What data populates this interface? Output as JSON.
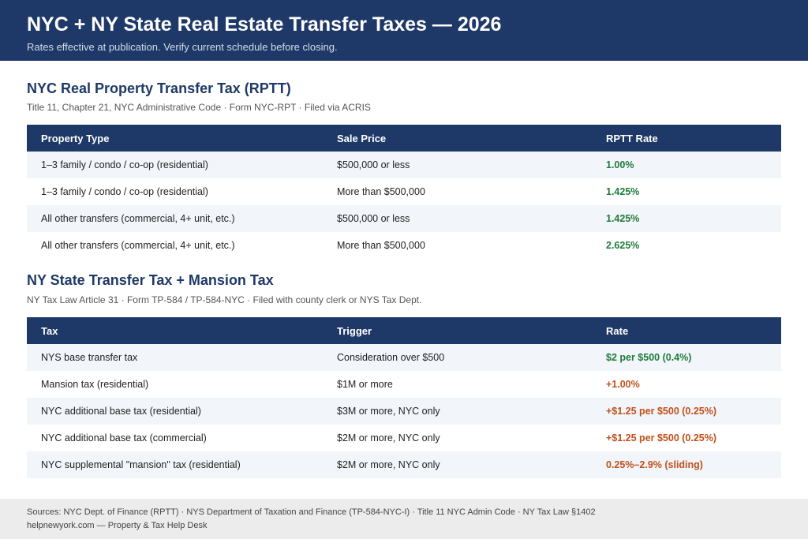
{
  "header": {
    "title": "NYC + NY State Real Estate Transfer Taxes — 2026",
    "subtitle": "Rates effective at publication. Verify current schedule before closing."
  },
  "sections": [
    {
      "title": "NYC Real Property Transfer Tax (RPTT)",
      "subtitle": "Title 11, Chapter 21, NYC Administrative Code · Form NYC-RPT · Filed via ACRIS",
      "table": {
        "columns": [
          "Property Type",
          "Sale Price",
          "RPTT Rate"
        ],
        "rows": [
          [
            "1–3 family / condo / co-op (residential)",
            "$500,000 or less",
            "1.00%"
          ],
          [
            "1–3 family / condo / co-op (residential)",
            "More than $500,000",
            "1.425%"
          ],
          [
            "All other transfers (commercial, 4+ unit, etc.)",
            "$500,000 or less",
            "1.425%"
          ],
          [
            "All other transfers (commercial, 4+ unit, etc.)",
            "More than $500,000",
            "2.625%"
          ]
        ],
        "rate_colors": [
          "#1f7a3c",
          "#1f7a3c",
          "#1f7a3c",
          "#1f7a3c"
        ]
      }
    },
    {
      "title": "NY State Transfer Tax + Mansion Tax",
      "subtitle": "NY Tax Law Article 31 · Form TP-584 / TP-584-NYC · Filed with county clerk or NYS Tax Dept.",
      "table": {
        "columns": [
          "Tax",
          "Trigger",
          "Rate"
        ],
        "rows": [
          [
            "NYS base transfer tax",
            "Consideration over $500",
            "$2 per $500 (0.4%)"
          ],
          [
            "Mansion tax (residential)",
            "$1M or more",
            "+1.00%"
          ],
          [
            "NYC additional base tax (residential)",
            "$3M or more, NYC only",
            "+$1.25 per $500 (0.25%)"
          ],
          [
            "NYC additional base tax (commercial)",
            "$2M or more, NYC only",
            "+$1.25 per $500 (0.25%)"
          ],
          [
            "NYC supplemental \"mansion\" tax (residential)",
            "$2M or more, NYC only",
            "0.25%–2.9% (sliding)"
          ]
        ],
        "rate_colors": [
          "#1f7a3c",
          "#c0501a",
          "#c0501a",
          "#c0501a",
          "#c0501a"
        ]
      }
    }
  ],
  "footer": {
    "sources": "Sources: NYC Dept. of Finance (RPTT) · NYS Department of Taxation and Finance (TP-584-NYC-I) · Title 11 NYC Admin Code · NY Tax Law §1402",
    "site": "helpnewyork.com — Property & Tax Help Desk"
  }
}
